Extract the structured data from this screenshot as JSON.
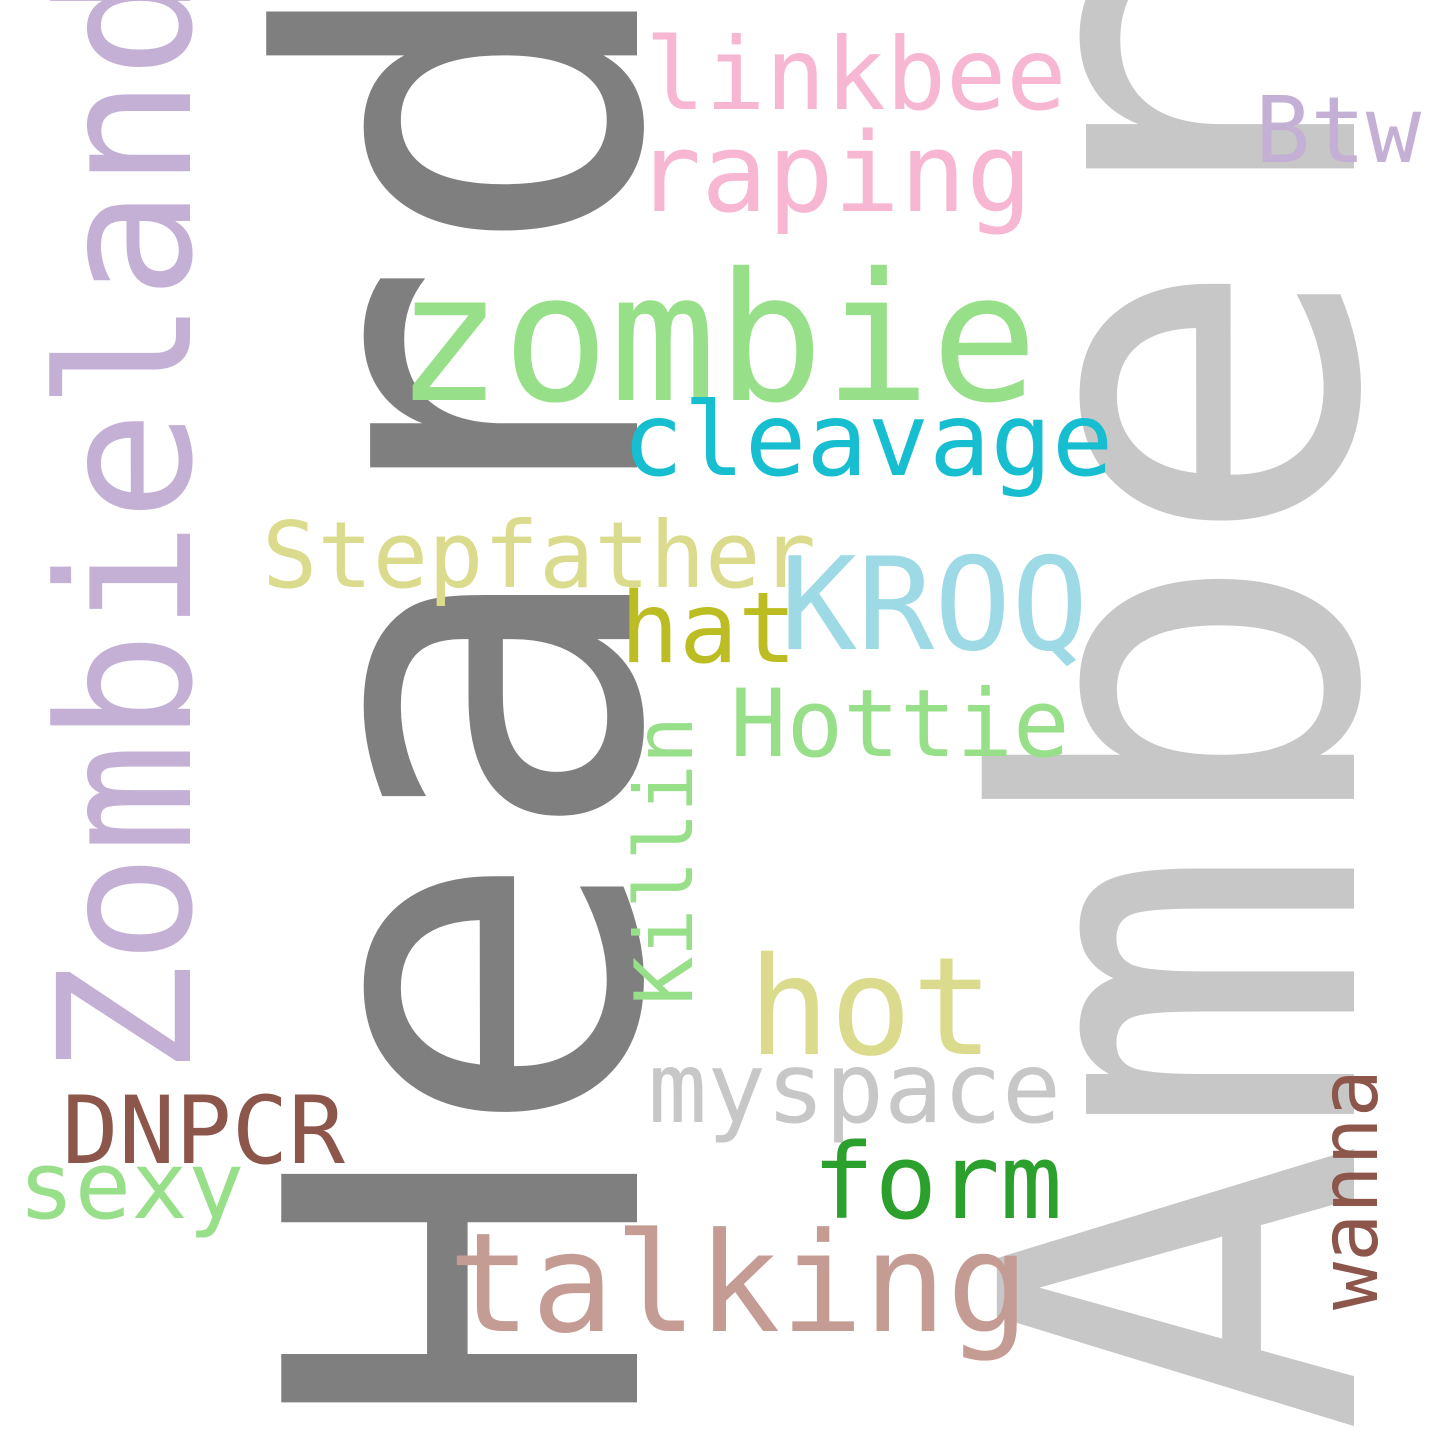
{
  "words": [
    {
      "text": "Heard",
      "color": "#7f7f7f",
      "vertical": true
    },
    {
      "text": "Amber",
      "color": "#c7c7c7",
      "vertical": true
    },
    {
      "text": "Zombieland",
      "color": "#c5b0d5",
      "vertical": true
    },
    {
      "text": "zombie",
      "color": "#98df8a",
      "vertical": false
    },
    {
      "text": "linkbee",
      "color": "#f7b6d2",
      "vertical": false
    },
    {
      "text": "raping",
      "color": "#f7b6d2",
      "vertical": false
    },
    {
      "text": "Btw",
      "color": "#c5b0d5",
      "vertical": false
    },
    {
      "text": "cleavage",
      "color": "#17becf",
      "vertical": false
    },
    {
      "text": "Stepfather",
      "color": "#dbdb8d",
      "vertical": false
    },
    {
      "text": "KROQ",
      "color": "#9edae5",
      "vertical": false
    },
    {
      "text": "hat",
      "color": "#bcbd22",
      "vertical": false
    },
    {
      "text": "Hottie",
      "color": "#98df8a",
      "vertical": false
    },
    {
      "text": "Killin",
      "color": "#98df8a",
      "vertical": true
    },
    {
      "text": "hot",
      "color": "#dbdb8d",
      "vertical": false
    },
    {
      "text": "myspace",
      "color": "#c7c7c7",
      "vertical": false
    },
    {
      "text": "DNPCR",
      "color": "#8c564b",
      "vertical": false
    },
    {
      "text": "sexy",
      "color": "#98df8a",
      "vertical": false
    },
    {
      "text": "form",
      "color": "#2ca02c",
      "vertical": false
    },
    {
      "text": "talking",
      "color": "#c49c94",
      "vertical": false
    },
    {
      "text": "wanna",
      "color": "#8c564b",
      "vertical": true
    }
  ]
}
